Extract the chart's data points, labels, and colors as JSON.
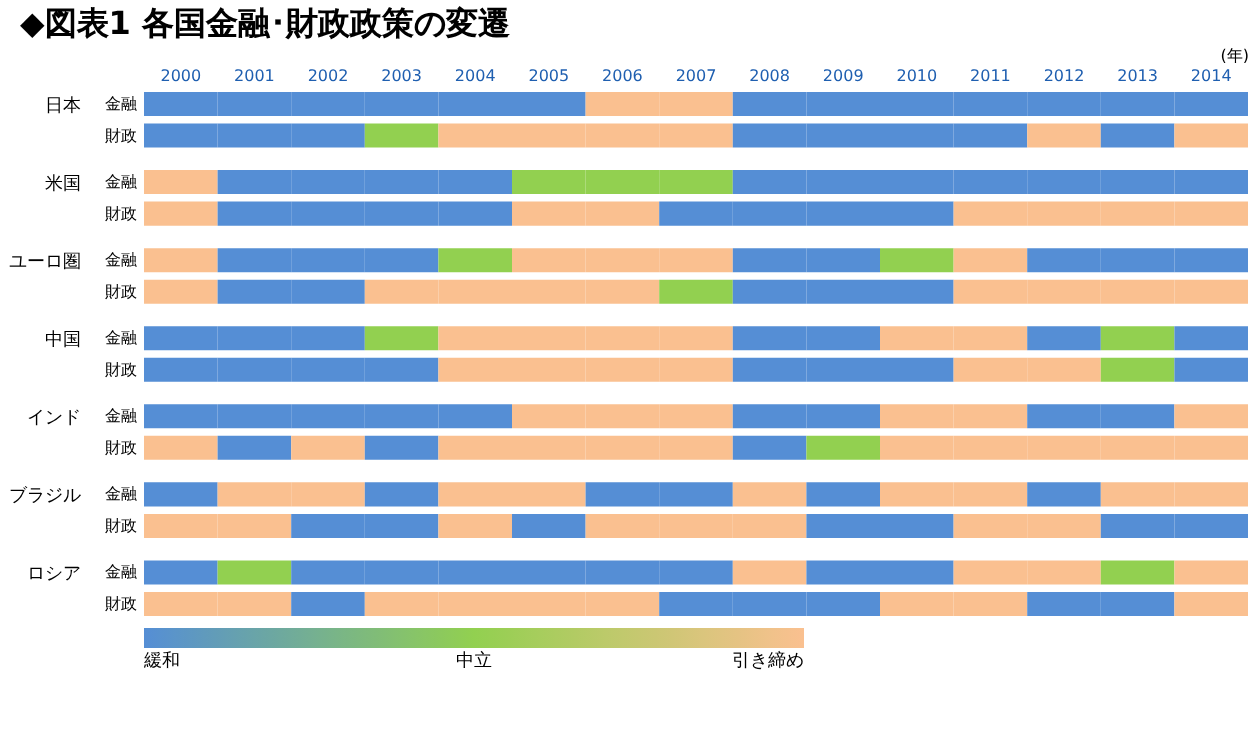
{
  "chart_data": {
    "type": "heatmap",
    "title": "◆図表1 各国金融･財政政策の変遷",
    "xlabel": "(年)",
    "categories": [
      "2000",
      "2001",
      "2002",
      "2003",
      "2004",
      "2005",
      "2006",
      "2007",
      "2008",
      "2009",
      "2010",
      "2011",
      "2012",
      "2013",
      "2014"
    ],
    "y_categories": [
      "金融",
      "財政",
      "金融",
      "財政",
      "金融",
      "財政",
      "金融",
      "財政",
      "金融",
      "財政",
      "金融",
      "財政",
      "金融",
      "財政"
    ],
    "y2_categories": [
      "日本",
      null,
      "米国",
      null,
      "ユーロ圏",
      null,
      "中国",
      null,
      "インド",
      null,
      "ブラジル",
      null,
      "ロシア",
      null
    ],
    "clim": [
      1,
      3
    ],
    "cticks": [
      {
        "value": 1,
        "label": "緩和"
      },
      {
        "value": 2,
        "label": "中立"
      },
      {
        "value": 3,
        "label": "引き締め"
      }
    ],
    "colors": [
      "#558ed5",
      "#92d050",
      "#fac090"
    ],
    "cells": [
      [
        1,
        1,
        1,
        1,
        1,
        1,
        3,
        3,
        1,
        1,
        1,
        1,
        1,
        1,
        1
      ],
      [
        1,
        1,
        1,
        2,
        3,
        3,
        3,
        3,
        1,
        1,
        1,
        1,
        3,
        1,
        3
      ],
      [
        3,
        1,
        1,
        1,
        1,
        2,
        2,
        2,
        1,
        1,
        1,
        1,
        1,
        1,
        1
      ],
      [
        3,
        1,
        1,
        1,
        1,
        3,
        3,
        1,
        1,
        1,
        1,
        3,
        3,
        3,
        3
      ],
      [
        3,
        1,
        1,
        1,
        2,
        3,
        3,
        3,
        1,
        1,
        2,
        3,
        1,
        1,
        1
      ],
      [
        3,
        1,
        1,
        3,
        3,
        3,
        3,
        2,
        1,
        1,
        1,
        3,
        3,
        3,
        3
      ],
      [
        1,
        1,
        1,
        2,
        3,
        3,
        3,
        3,
        1,
        1,
        3,
        3,
        1,
        2,
        1
      ],
      [
        1,
        1,
        1,
        1,
        3,
        3,
        3,
        3,
        1,
        1,
        1,
        3,
        3,
        2,
        1
      ],
      [
        1,
        1,
        1,
        1,
        1,
        3,
        3,
        3,
        1,
        1,
        3,
        3,
        1,
        1,
        3
      ],
      [
        3,
        1,
        3,
        1,
        3,
        3,
        3,
        3,
        1,
        2,
        3,
        3,
        3,
        3,
        3
      ],
      [
        1,
        3,
        3,
        1,
        3,
        3,
        1,
        1,
        3,
        1,
        3,
        3,
        1,
        3,
        3
      ],
      [
        3,
        3,
        1,
        1,
        3,
        1,
        3,
        3,
        3,
        1,
        1,
        3,
        3,
        1,
        1
      ],
      [
        1,
        2,
        1,
        1,
        1,
        1,
        1,
        1,
        3,
        1,
        1,
        3,
        3,
        2,
        3
      ],
      [
        3,
        3,
        1,
        3,
        3,
        3,
        3,
        1,
        1,
        1,
        3,
        3,
        1,
        1,
        3
      ]
    ]
  }
}
